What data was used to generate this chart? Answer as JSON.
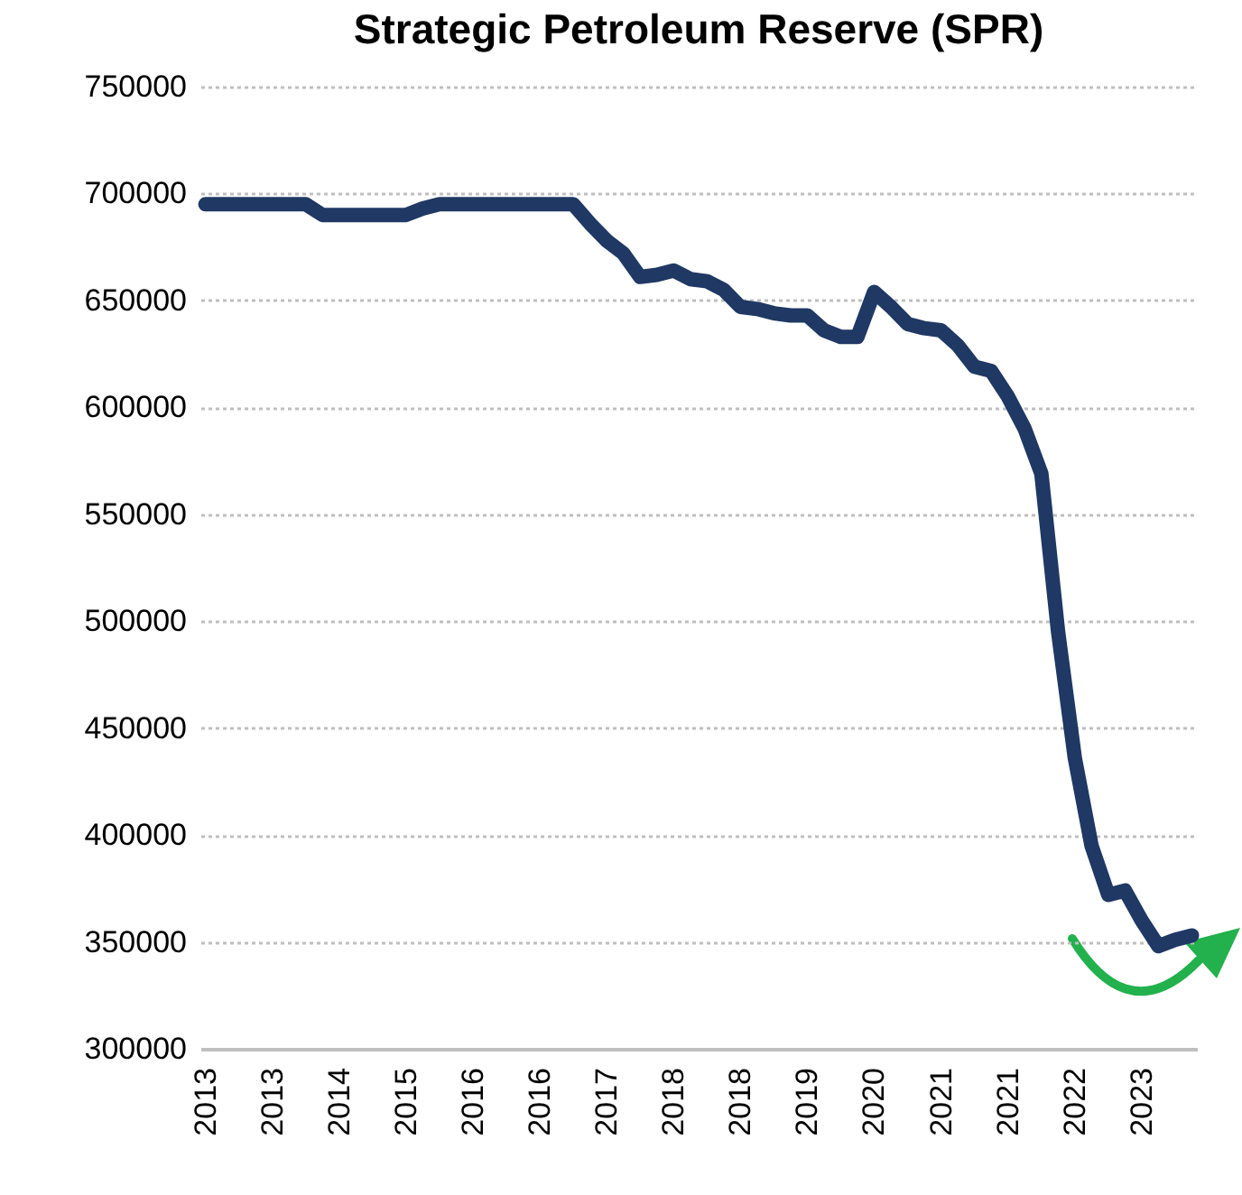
{
  "chart_data": {
    "type": "line",
    "title": "Strategic Petroleum Reserve (SPR)",
    "categories": [
      "2013",
      null,
      null,
      null,
      "2013",
      null,
      null,
      null,
      "2014",
      null,
      null,
      null,
      "2015",
      null,
      null,
      null,
      "2016",
      null,
      null,
      null,
      "2016",
      null,
      null,
      null,
      "2017",
      null,
      null,
      null,
      "2018",
      null,
      null,
      null,
      "2018",
      null,
      null,
      null,
      "2019",
      null,
      null,
      null,
      "2020",
      null,
      null,
      null,
      "2021",
      null,
      null,
      null,
      "2021",
      null,
      null,
      null,
      "2022",
      null,
      null,
      null,
      "2023",
      null,
      null,
      null
    ],
    "series": [
      {
        "color": "#1f3864",
        "values": [
          695000,
          695000,
          695000,
          695000,
          695000,
          695000,
          695000,
          690000,
          690000,
          690000,
          690000,
          690000,
          690000,
          693000,
          695000,
          695000,
          695000,
          695000,
          695000,
          695000,
          695000,
          695000,
          695000,
          686000,
          678000,
          672000,
          661000,
          662000,
          664000,
          660000,
          659000,
          655000,
          647000,
          646000,
          644000,
          643000,
          643000,
          636000,
          633000,
          633000,
          654000,
          647000,
          639000,
          637000,
          636000,
          629000,
          619000,
          617000,
          605000,
          590000,
          569000,
          495000,
          436000,
          395000,
          372000,
          374000,
          360000,
          348000,
          351000,
          353000
        ]
      }
    ],
    "ylim": [
      300000,
      750000
    ],
    "yticks": [
      300000,
      350000,
      400000,
      450000,
      500000,
      550000,
      600000,
      650000,
      700000,
      750000
    ],
    "grid": "y",
    "line_style": "solid"
  }
}
